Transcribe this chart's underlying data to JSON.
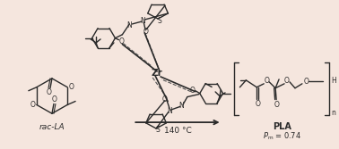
{
  "background_color": "#f5e6de",
  "fig_width": 3.78,
  "fig_height": 1.67,
  "dpi": 100,
  "bond_color": "#2a2a2a",
  "text_color": "#2a2a2a",
  "label_rac_la": "rac-LA",
  "label_pla": "PLA",
  "label_pm": "$\\mathit{P}_{\\mathrm{m}}$ = 0.74",
  "label_temp": "140 °C",
  "label_zr": "Zr",
  "label_S": "S",
  "label_H": "H",
  "label_n": "n"
}
